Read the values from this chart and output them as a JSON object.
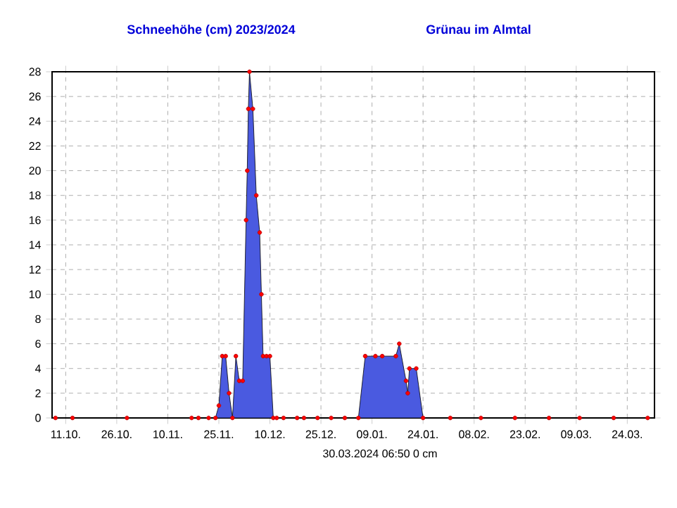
{
  "chart_data": {
    "type": "area",
    "title": "Schneehöhe (cm)  2023/2024",
    "subtitle": "Grünau im Almtal",
    "x": [
      "2023-10-08",
      "2023-10-13",
      "2023-10-29",
      "2023-11-17",
      "2023-11-19",
      "2023-11-22",
      "2023-11-24",
      "2023-11-25",
      "2023-11-26",
      "2023-11-27",
      "2023-11-28",
      "2023-11-29",
      "2023-11-30",
      "2023-12-01",
      "2023-12-02",
      "2023-12-03T00:00",
      "2023-12-03T08:00",
      "2023-12-03T16:00",
      "2023-12-04",
      "2023-12-05",
      "2023-12-06",
      "2023-12-07",
      "2023-12-07T12:00",
      "2023-12-08",
      "2023-12-09",
      "2023-12-10",
      "2023-12-11",
      "2023-12-12",
      "2023-12-14",
      "2023-12-18",
      "2023-12-20",
      "2023-12-24",
      "2023-12-28",
      "2024-01-01",
      "2024-01-05",
      "2024-01-07",
      "2024-01-10",
      "2024-01-12",
      "2024-01-16",
      "2024-01-17",
      "2024-01-19",
      "2024-01-19T12:00",
      "2024-01-20",
      "2024-01-22",
      "2024-01-24",
      "2024-02-01",
      "2024-02-10",
      "2024-02-20",
      "2024-03-01",
      "2024-03-10",
      "2024-03-20",
      "2024-03-30"
    ],
    "series": [
      {
        "color": "#4a5ae0",
        "values": [
          0,
          0,
          0,
          0,
          0,
          0,
          0,
          1,
          5,
          5,
          2,
          0,
          5,
          3,
          3,
          16,
          20,
          25,
          28,
          25,
          18,
          15,
          10,
          5,
          5,
          5,
          0,
          0,
          0,
          0,
          0,
          0,
          0,
          0,
          0,
          5,
          5,
          5,
          5,
          6,
          3,
          2,
          4,
          4,
          0,
          0,
          0,
          0,
          0,
          0,
          0,
          0
        ]
      }
    ],
    "xlim": [
      "2023-10-07",
      "2024-04-01"
    ],
    "xticks": [
      {
        "value": "2023-10-11",
        "label": "11.10."
      },
      {
        "value": "2023-10-26",
        "label": "26.10."
      },
      {
        "value": "2023-11-10",
        "label": "10.11."
      },
      {
        "value": "2023-11-25",
        "label": "25.11."
      },
      {
        "value": "2023-12-10",
        "label": "10.12."
      },
      {
        "value": "2023-12-25",
        "label": "25.12."
      },
      {
        "value": "2024-01-09",
        "label": "09.01."
      },
      {
        "value": "2024-01-24",
        "label": "24.01."
      },
      {
        "value": "2024-02-08",
        "label": "08.02."
      },
      {
        "value": "2024-02-23",
        "label": "23.02."
      },
      {
        "value": "2024-03-09",
        "label": "09.03."
      },
      {
        "value": "2024-03-24",
        "label": "24.03."
      }
    ],
    "ylim": [
      0,
      28
    ],
    "yticks": [
      0,
      2,
      4,
      6,
      8,
      10,
      12,
      14,
      16,
      18,
      20,
      22,
      24,
      26,
      28
    ],
    "grid": true,
    "marker": "circle",
    "annotations": [
      "30.03.2024  06:50   0 cm"
    ]
  }
}
